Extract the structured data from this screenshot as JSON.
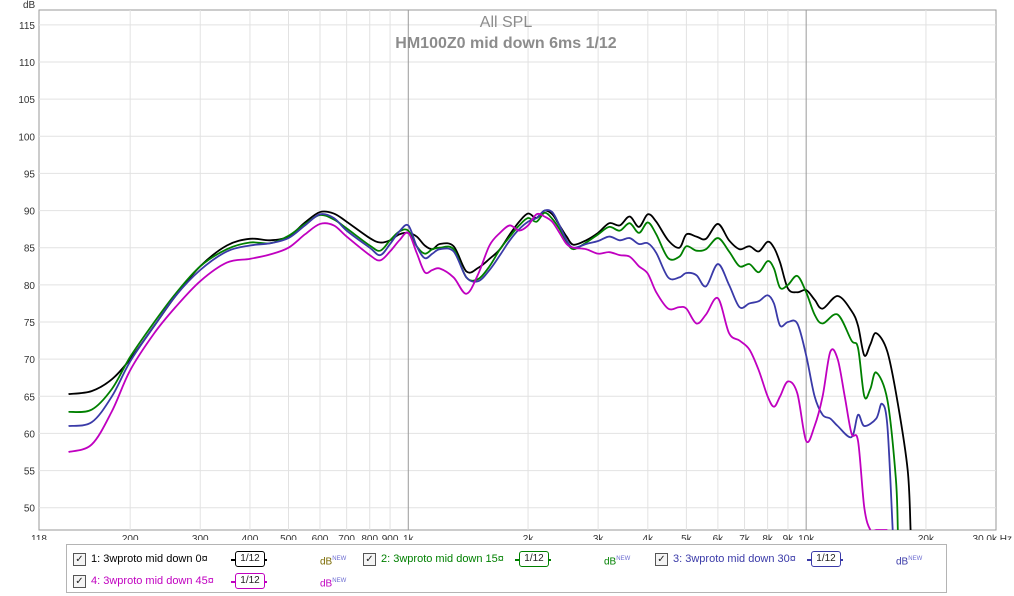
{
  "chart_data": {
    "type": "line",
    "title": "All SPL",
    "subtitle": "HM100Z0 mid down 6ms 1/12",
    "ylabel": "dB",
    "xlabel": "Hz",
    "xscale": "log",
    "xlim": [
      118,
      30000
    ],
    "ylim": [
      47,
      117
    ],
    "grid": true,
    "legend_placement": "bottom",
    "x_ticks": [
      {
        "v": 118,
        "label": "118"
      },
      {
        "v": 200,
        "label": "200"
      },
      {
        "v": 300,
        "label": "300"
      },
      {
        "v": 400,
        "label": "400"
      },
      {
        "v": 500,
        "label": "500"
      },
      {
        "v": 600,
        "label": "600"
      },
      {
        "v": 700,
        "label": "700"
      },
      {
        "v": 800,
        "label": "800"
      },
      {
        "v": 900,
        "label": "900"
      },
      {
        "v": 1000,
        "label": "1k"
      },
      {
        "v": 2000,
        "label": "2k"
      },
      {
        "v": 3000,
        "label": "3k"
      },
      {
        "v": 4000,
        "label": "4k"
      },
      {
        "v": 5000,
        "label": "5k"
      },
      {
        "v": 6000,
        "label": "6k"
      },
      {
        "v": 7000,
        "label": "7k"
      },
      {
        "v": 8000,
        "label": "8k"
      },
      {
        "v": 9000,
        "label": "9k"
      },
      {
        "v": 10000,
        "label": "10k"
      },
      {
        "v": 20000,
        "label": "20k"
      },
      {
        "v": 30000,
        "label": "30,0k Hz"
      }
    ],
    "y_ticks": [
      50,
      55,
      60,
      65,
      70,
      75,
      80,
      85,
      90,
      95,
      100,
      105,
      110,
      115
    ],
    "series": [
      {
        "name": "1: 3wproto mid down 0¤",
        "color": "#000000",
        "x": [
          140,
          160,
          180,
          200,
          230,
          260,
          300,
          350,
          400,
          450,
          500,
          550,
          600,
          650,
          700,
          800,
          850,
          900,
          950,
          1000,
          1050,
          1100,
          1150,
          1200,
          1300,
          1400,
          1500,
          1600,
          1700,
          1800,
          1900,
          2000,
          2100,
          2200,
          2300,
          2400,
          2500,
          2600,
          2800,
          3000,
          3200,
          3400,
          3600,
          3800,
          4000,
          4200,
          4500,
          4800,
          5000,
          5300,
          5600,
          6000,
          6400,
          6800,
          7200,
          7600,
          8000,
          8300,
          8600,
          9000,
          9500,
          10000,
          10500,
          11000,
          12000,
          13000,
          13500,
          14000,
          14500,
          15000,
          16000,
          17000,
          18000,
          18300
        ],
        "y": [
          65.3,
          65.7,
          67.3,
          70,
          74.5,
          78.5,
          82.5,
          85.3,
          86.2,
          86,
          86.5,
          88.4,
          89.8,
          89.6,
          88.5,
          86.3,
          85.7,
          86,
          86.8,
          87,
          86.5,
          85.3,
          84.8,
          85.5,
          85.2,
          81.8,
          82.3,
          83.5,
          84.8,
          86.8,
          88.5,
          89.6,
          89,
          90,
          89.5,
          88,
          86.5,
          85.4,
          86,
          87,
          88.3,
          88,
          89.2,
          87.8,
          89.5,
          88.5,
          86,
          85,
          86.8,
          86.5,
          86.2,
          88.2,
          86,
          84.8,
          85.2,
          84.5,
          85.8,
          85,
          83,
          79.5,
          79,
          79.3,
          78,
          76.8,
          78.5,
          76.5,
          74.5,
          70.5,
          72,
          73.5,
          71,
          64,
          55,
          47
        ]
      },
      {
        "name": "2: 3wproto mid down 15¤",
        "color": "#008000",
        "x": [
          140,
          160,
          180,
          200,
          230,
          260,
          300,
          350,
          400,
          450,
          500,
          550,
          600,
          650,
          700,
          800,
          850,
          900,
          950,
          1000,
          1050,
          1100,
          1150,
          1200,
          1300,
          1400,
          1500,
          1600,
          1700,
          1800,
          1900,
          2000,
          2100,
          2200,
          2300,
          2400,
          2500,
          2600,
          2800,
          3000,
          3200,
          3400,
          3600,
          3800,
          4000,
          4200,
          4500,
          4800,
          5000,
          5300,
          5600,
          6000,
          6400,
          6800,
          7200,
          7600,
          8000,
          8300,
          8600,
          9000,
          9500,
          10000,
          10500,
          11000,
          12000,
          13000,
          13500,
          14000,
          14500,
          15000,
          16000,
          16800,
          17000
        ],
        "y": [
          62.9,
          63.2,
          66,
          70.3,
          75,
          78.8,
          82.5,
          84.8,
          85.7,
          85.6,
          86.6,
          88.2,
          89.4,
          88.8,
          87.6,
          85.3,
          84.6,
          86,
          87.2,
          87.3,
          85.2,
          84.2,
          84.8,
          85,
          84.8,
          81,
          80.8,
          82.5,
          84.8,
          86.5,
          88,
          89,
          88.5,
          89.7,
          88.9,
          87.5,
          85.8,
          84.8,
          85.7,
          86.8,
          87.8,
          87.3,
          88.3,
          87,
          88.4,
          86.8,
          83.6,
          83.8,
          85.2,
          84.6,
          84.8,
          86.3,
          84.5,
          82.5,
          82.8,
          81.7,
          83.2,
          82.2,
          79.6,
          80,
          81.2,
          79,
          76,
          74.8,
          76,
          72.5,
          71.5,
          65,
          66,
          68.2,
          64.5,
          54,
          47
        ]
      },
      {
        "name": "3: 3wproto mid down 30¤",
        "color": "#3a3aa8",
        "x": [
          140,
          160,
          180,
          200,
          230,
          260,
          300,
          350,
          400,
          450,
          500,
          550,
          600,
          650,
          700,
          800,
          850,
          900,
          950,
          1000,
          1050,
          1100,
          1150,
          1200,
          1300,
          1400,
          1500,
          1600,
          1700,
          1800,
          1900,
          2000,
          2100,
          2200,
          2300,
          2400,
          2500,
          2600,
          2800,
          3000,
          3200,
          3400,
          3600,
          3800,
          4000,
          4200,
          4500,
          4800,
          5000,
          5300,
          5600,
          6000,
          6400,
          6800,
          7200,
          7600,
          8000,
          8300,
          8600,
          9000,
          9500,
          10000,
          10500,
          11000,
          11500,
          12000,
          13000,
          13500,
          14000,
          15000,
          15500,
          16000,
          16500
        ],
        "y": [
          61,
          61.5,
          65,
          69.7,
          74.5,
          78.5,
          82,
          84.5,
          85.3,
          85.6,
          86.3,
          88,
          89.5,
          89,
          87.3,
          85,
          84,
          85.5,
          87.2,
          88,
          85.2,
          83.6,
          84.2,
          84.8,
          84.5,
          81,
          80.5,
          82,
          84,
          86,
          87.5,
          88.5,
          89,
          90,
          89.8,
          88,
          86,
          85,
          85.5,
          85.9,
          86.5,
          86,
          86.3,
          85.5,
          85.6,
          84.3,
          81,
          81,
          81.6,
          81.3,
          79.8,
          82.8,
          80,
          77,
          77.5,
          77.8,
          78.6,
          77.5,
          74.5,
          75,
          74.8,
          70.5,
          65,
          62.5,
          62,
          61,
          59.5,
          62.5,
          61,
          62,
          64,
          61,
          47
        ]
      },
      {
        "name": "4: 3wproto mid down 45¤",
        "color": "#c000c0",
        "x": [
          140,
          160,
          180,
          200,
          230,
          260,
          300,
          350,
          400,
          450,
          500,
          550,
          600,
          650,
          700,
          800,
          850,
          900,
          950,
          1000,
          1050,
          1100,
          1150,
          1200,
          1300,
          1400,
          1500,
          1600,
          1700,
          1800,
          1900,
          2000,
          2100,
          2200,
          2300,
          2400,
          2500,
          2600,
          2800,
          3000,
          3200,
          3400,
          3600,
          3800,
          4000,
          4200,
          4500,
          4800,
          5000,
          5300,
          5600,
          6000,
          6400,
          6800,
          7200,
          7600,
          8000,
          8300,
          8600,
          9000,
          9500,
          10000,
          10500,
          11000,
          11500,
          12000,
          12500,
          13000,
          13500,
          14000,
          14500,
          15000,
          16000
        ],
        "y": [
          57.5,
          58.5,
          63,
          68.5,
          73.5,
          77,
          80.5,
          83,
          83.5,
          84.1,
          85,
          86.8,
          88.2,
          88,
          86.5,
          84,
          83.3,
          84.5,
          86,
          87,
          84.3,
          81.7,
          82,
          82.2,
          81,
          78.8,
          81.5,
          85.3,
          87,
          88,
          87.3,
          88,
          89.5,
          89.2,
          88.5,
          87,
          85.5,
          85,
          84.8,
          84.2,
          84.4,
          84,
          83.8,
          82.5,
          81.5,
          79,
          76.8,
          77,
          76.8,
          74.8,
          76,
          78.2,
          73.5,
          72.5,
          71.3,
          68.5,
          65,
          63.6,
          65,
          67,
          65.4,
          59,
          61,
          65,
          71,
          70,
          65,
          60,
          59,
          50,
          47,
          47,
          47
        ]
      }
    ]
  },
  "legend": {
    "items": [
      {
        "label": "1: 3wproto mid down 0¤",
        "smooth": "1/12",
        "unit": "dB",
        "unit_sup": "NEW",
        "color": "#000000"
      },
      {
        "label": "2: 3wproto mid down 15¤",
        "smooth": "1/12",
        "unit": "dB",
        "unit_sup": "NEW",
        "color": "#008000"
      },
      {
        "label": "3: 3wproto mid down 30¤",
        "smooth": "1/12",
        "unit": "dB",
        "unit_sup": "NEW",
        "color": "#3a3aa8"
      },
      {
        "label": "4: 3wproto mid down 45¤",
        "smooth": "1/12",
        "unit": "dB",
        "unit_sup": "NEW",
        "color": "#c000c0"
      }
    ]
  }
}
